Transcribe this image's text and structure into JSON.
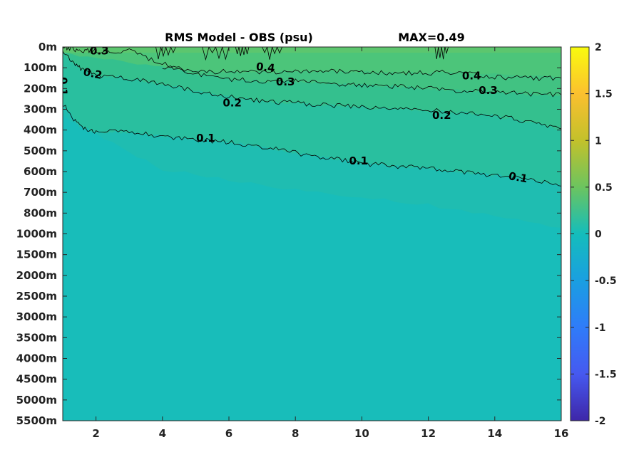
{
  "chart_data": {
    "type": "heatmap",
    "title": "RMS Model - OBS (psu)",
    "max_label": "MAX=0.49",
    "xlim": [
      1,
      16
    ],
    "x_ticks": [
      2,
      4,
      6,
      8,
      10,
      12,
      14,
      16
    ],
    "y_ticks": [
      "0m",
      "100m",
      "200m",
      "300m",
      "400m",
      "500m",
      "600m",
      "700m",
      "800m",
      "1000m",
      "1500m",
      "2000m",
      "2500m",
      "3000m",
      "3500m",
      "4000m",
      "4500m",
      "5000m",
      "5500m"
    ],
    "color_limits": [
      -2,
      2
    ],
    "colorbar_ticks": [
      "2",
      "1.5",
      "1",
      "0.5",
      "0",
      "-0.5",
      "-1",
      "-1.5",
      "-2"
    ],
    "colormap": "parula",
    "contour_levels": [
      0.1,
      0.2,
      0.3,
      0.4
    ],
    "contours": [
      {
        "level": 0.4,
        "x": [
          13,
          14,
          15,
          16
        ],
        "depth_index": [
          1.2,
          1.45,
          1.5,
          1.5
        ],
        "label": "0.4"
      },
      {
        "level": 0.4,
        "x": [
          4,
          5,
          6,
          7,
          8,
          9,
          10,
          11,
          12,
          13
        ],
        "depth_index": [
          0.95,
          1.15,
          1.2,
          1.2,
          1.2,
          1.15,
          1.2,
          1.25,
          1.25,
          1.2
        ],
        "label": "0.4"
      },
      {
        "level": 0.3,
        "x": [
          1.0,
          1.5,
          2.0,
          3.0,
          4.0,
          5.0,
          6.0,
          7.0,
          8.0,
          9.0,
          10.0,
          11.0,
          12.0,
          13.0,
          14.0,
          15.0,
          16.0
        ],
        "depth_index": [
          0.0,
          0.15,
          0.2,
          0.2,
          0.8,
          1.3,
          1.55,
          1.65,
          1.65,
          1.75,
          1.85,
          1.9,
          2.0,
          2.1,
          2.15,
          2.25,
          2.3
        ],
        "label": "0.3"
      },
      {
        "level": 0.2,
        "x": [
          1.0,
          1.5,
          2.0,
          3.0,
          4.0,
          5.0,
          6.0,
          7.0,
          8.0,
          9.0,
          10.0,
          11.0,
          12.0,
          13.0,
          14.0,
          15.0,
          16.0
        ],
        "depth_index": [
          0.3,
          1.0,
          1.35,
          1.5,
          1.8,
          2.1,
          2.4,
          2.6,
          2.7,
          2.8,
          2.9,
          3.0,
          3.05,
          3.15,
          3.3,
          3.6,
          3.95
        ],
        "label": "0.2"
      },
      {
        "level": 0.1,
        "x": [
          1.0,
          1.5,
          2.0,
          3.0,
          4.0,
          5.0,
          6.0,
          7.0,
          8.0,
          9.0,
          10.0,
          11.0,
          12.0,
          13.0,
          14.0,
          15.0,
          16.0
        ],
        "depth_index": [
          2.75,
          3.8,
          4.1,
          4.1,
          4.3,
          4.45,
          4.6,
          4.8,
          5.1,
          5.35,
          5.6,
          5.75,
          5.85,
          6.0,
          6.2,
          6.35,
          6.7
        ],
        "label": "0.1"
      }
    ],
    "contour_label_positions": [
      {
        "text": "0.3",
        "x": 2.1,
        "depth_index": 0.2
      },
      {
        "text": "0.2",
        "x": 1.9,
        "depth_index": 1.3,
        "rotate": 12
      },
      {
        "text": "0.1",
        "x": 1.0,
        "depth_index": 1.9,
        "rotate": 90
      },
      {
        "text": "0.4",
        "x": 7.1,
        "depth_index": 1.0,
        "rotate": 6
      },
      {
        "text": "0.3",
        "x": 7.7,
        "depth_index": 1.7
      },
      {
        "text": "0.2",
        "x": 6.1,
        "depth_index": 2.7
      },
      {
        "text": "0.1",
        "x": 5.3,
        "depth_index": 4.4
      },
      {
        "text": "0.4",
        "x": 13.3,
        "depth_index": 1.4
      },
      {
        "text": "0.3",
        "x": 13.8,
        "depth_index": 2.1
      },
      {
        "text": "0.2",
        "x": 12.4,
        "depth_index": 3.3
      },
      {
        "text": "0.1",
        "x": 9.9,
        "depth_index": 5.5
      },
      {
        "text": "0.1",
        "x": 14.7,
        "depth_index": 6.3,
        "rotate": 10
      }
    ],
    "grid": false
  },
  "colors": {
    "band_top": "#5cc66e",
    "band_04": "#4cc57a",
    "band_03": "#41c282",
    "band_02": "#34c08e",
    "band_01": "#29bf9f",
    "band_low": "#1fbdb1",
    "background_zero": "#18bdba",
    "colorbar_stops": [
      "#f9fb0e",
      "#fbc02f",
      "#c3c12b",
      "#6cc45f",
      "#14bdbb",
      "#1a9fe1",
      "#2f7cf9",
      "#4659f0",
      "#3e26a8"
    ]
  }
}
